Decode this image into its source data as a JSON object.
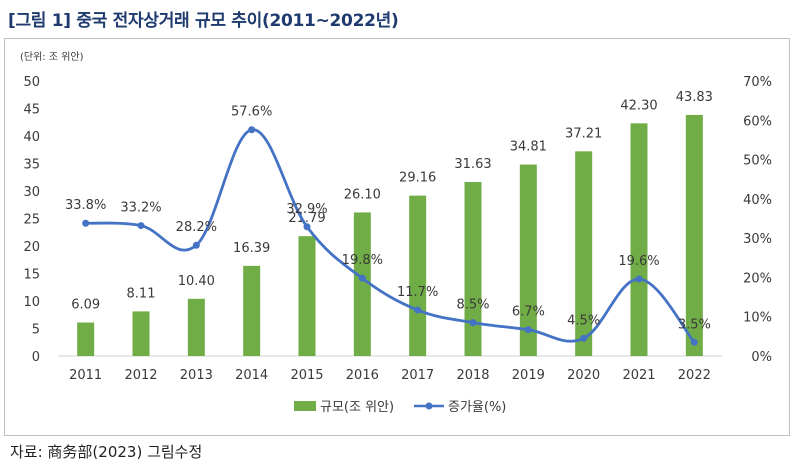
{
  "figure": {
    "title": "[그림 1] 중국 전자상거래 규모 추이(2011~2022년)",
    "source": "자료: 商务部(2023) 그림수정",
    "unit_note": "(단위: 조 위안)"
  },
  "colors": {
    "bar": "#70ad47",
    "line": "#4472c4",
    "title": "#1f3a6e"
  },
  "chart_data": {
    "type": "bar",
    "categories": [
      "2011",
      "2012",
      "2013",
      "2014",
      "2015",
      "2016",
      "2017",
      "2018",
      "2019",
      "2020",
      "2021",
      "2022"
    ],
    "series": [
      {
        "name": "규모(조 위안)",
        "type": "bar",
        "axis": "left",
        "values": [
          6.09,
          8.11,
          10.4,
          16.39,
          21.79,
          26.1,
          29.16,
          31.63,
          34.81,
          37.21,
          42.3,
          43.83
        ],
        "labels": [
          "6.09",
          "8.11",
          "10.40",
          "16.39",
          "21.79",
          "26.10",
          "29.16",
          "31.63",
          "34.81",
          "37.21",
          "42.30",
          "43.83"
        ]
      },
      {
        "name": "증가율(%)",
        "type": "line",
        "axis": "right",
        "values": [
          33.8,
          33.2,
          28.2,
          57.6,
          32.9,
          19.8,
          11.7,
          8.5,
          6.7,
          4.5,
          19.6,
          3.5
        ],
        "labels": [
          "33.8%",
          "33.2%",
          "28.2%",
          "57.6%",
          "32.9%",
          "19.8%",
          "11.7%",
          "8.5%",
          "6.7%",
          "4.5%",
          "19.6%",
          "3.5%"
        ]
      }
    ],
    "y_left": {
      "lim": [
        0,
        50
      ],
      "ticks": [
        "0",
        "5",
        "10",
        "15",
        "20",
        "25",
        "30",
        "35",
        "40",
        "45",
        "50"
      ]
    },
    "y_right": {
      "lim": [
        0,
        70
      ],
      "ticks": [
        "0%",
        "10%",
        "20%",
        "30%",
        "40%",
        "50%",
        "60%",
        "70%"
      ]
    },
    "grid": false,
    "legend": "bottom"
  }
}
